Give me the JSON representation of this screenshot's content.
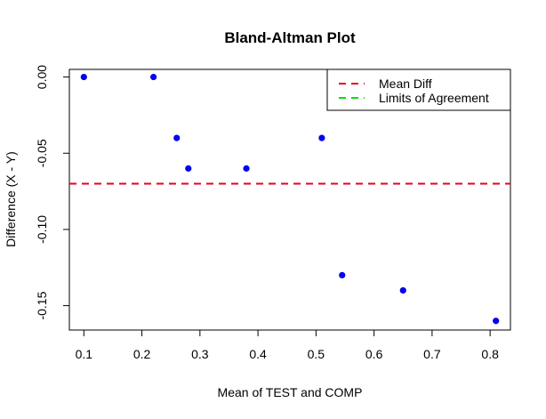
{
  "chart_data": {
    "type": "scatter",
    "title": "Bland-Altman Plot",
    "xlabel": "Mean of TEST and COMP",
    "ylabel": "Difference (X - Y)",
    "xlim": [
      0.075,
      0.835
    ],
    "ylim": [
      -0.166,
      0.005
    ],
    "xticks": [
      0.1,
      0.2,
      0.3,
      0.4,
      0.5,
      0.6,
      0.7,
      0.8
    ],
    "xtick_labels": [
      "0.1",
      "0.2",
      "0.3",
      "0.4",
      "0.5",
      "0.6",
      "0.7",
      "0.8"
    ],
    "yticks": [
      0.0,
      -0.05,
      -0.1,
      -0.15
    ],
    "ytick_labels": [
      "0.00",
      "-0.05",
      "-0.10",
      "-0.15"
    ],
    "series": [
      {
        "points": [
          {
            "x": 0.1,
            "y": 0.0
          },
          {
            "x": 0.22,
            "y": 0.0
          },
          {
            "x": 0.26,
            "y": -0.04
          },
          {
            "x": 0.28,
            "y": -0.06
          },
          {
            "x": 0.38,
            "y": -0.06
          },
          {
            "x": 0.51,
            "y": -0.04
          },
          {
            "x": 0.545,
            "y": -0.13
          },
          {
            "x": 0.65,
            "y": -0.14
          },
          {
            "x": 0.81,
            "y": -0.16
          }
        ],
        "color": "#0000ff"
      }
    ],
    "mean_diff": -0.07,
    "mean_diff_color": "#e8001c",
    "limits_color": "#00e000",
    "legend": {
      "position": "top-right",
      "entries": [
        {
          "label": "Mean Diff",
          "color": "#e8001c"
        },
        {
          "label": "Limits of Agreement",
          "color": "#00e000"
        }
      ]
    },
    "grid": false
  }
}
